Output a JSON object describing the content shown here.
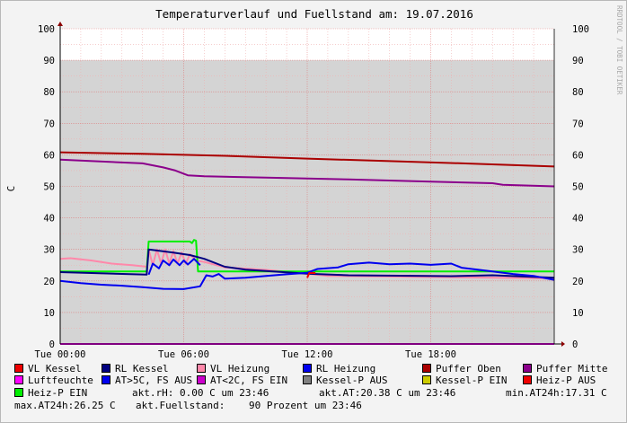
{
  "chart_data": {
    "type": "line",
    "title": "Temperaturverlauf und Fuellstand am: 19.07.2016",
    "ylabel": "C",
    "watermark": "RRDTOOL / TOBI OETIKER",
    "ylim": [
      0,
      100
    ],
    "yticks": [
      0,
      10,
      20,
      30,
      40,
      50,
      60,
      70,
      80,
      90,
      100
    ],
    "xlim_hours": [
      0,
      24
    ],
    "xticks": [
      {
        "h": 0,
        "label": "Tue 00:00"
      },
      {
        "h": 6,
        "label": "Tue 06:00"
      },
      {
        "h": 12,
        "label": "Tue 12:00"
      },
      {
        "h": 18,
        "label": "Tue 18:00"
      }
    ],
    "level_fill": 90,
    "series": [
      {
        "name": "Fuellstand",
        "color": "#d4d4d4",
        "role": "area",
        "points": [
          [
            0,
            90
          ],
          [
            24,
            90
          ]
        ]
      },
      {
        "name": "Puffer Oben",
        "color": "#aa0000",
        "points": [
          [
            0,
            60.8
          ],
          [
            4,
            60.3
          ],
          [
            8,
            59.7
          ],
          [
            12,
            58.8
          ],
          [
            16,
            58
          ],
          [
            20,
            57.2
          ],
          [
            24,
            56.3
          ]
        ]
      },
      {
        "name": "Puffer Mitte",
        "color": "#8b008b",
        "points": [
          [
            0,
            58.5
          ],
          [
            4,
            57.3
          ],
          [
            5,
            56
          ],
          [
            5.6,
            55
          ],
          [
            6.2,
            53.5
          ],
          [
            7,
            53.2
          ],
          [
            10,
            52.8
          ],
          [
            14,
            52.2
          ],
          [
            18,
            51.5
          ],
          [
            21,
            51
          ],
          [
            21.5,
            50.5
          ],
          [
            24,
            50
          ]
        ]
      },
      {
        "name": "VL Heizung",
        "color": "#ff88aa",
        "points": [
          [
            0,
            27
          ],
          [
            0.5,
            27.2
          ],
          [
            1.5,
            26.5
          ],
          [
            2.5,
            25.5
          ],
          [
            3.5,
            25
          ],
          [
            4.2,
            24.5
          ],
          [
            4.3,
            30
          ],
          [
            4.5,
            25
          ],
          [
            4.7,
            30
          ],
          [
            4.9,
            25.5
          ],
          [
            5.1,
            30
          ],
          [
            5.3,
            25.5
          ],
          [
            5.5,
            29.5
          ],
          [
            5.7,
            25.5
          ],
          [
            5.9,
            29
          ],
          [
            6.1,
            25.5
          ],
          [
            6.3,
            28.5
          ],
          [
            6.6,
            26.5
          ],
          [
            7,
            26
          ],
          [
            8,
            24.3
          ],
          [
            10,
            23.5
          ],
          [
            12,
            22.3
          ],
          [
            13,
            21.6
          ],
          [
            24,
            20.8
          ]
        ]
      },
      {
        "name": "Heiz-P EIN",
        "color": "#00ee00",
        "points": [
          [
            0,
            23
          ],
          [
            4.2,
            23
          ],
          [
            4.3,
            32.5
          ],
          [
            6.3,
            32.5
          ],
          [
            6.4,
            32
          ],
          [
            6.5,
            33
          ],
          [
            6.6,
            32.8
          ],
          [
            6.7,
            23
          ],
          [
            24,
            23
          ]
        ]
      },
      {
        "name": "RL Kessel",
        "color": "#000080",
        "points": [
          [
            0,
            22.8
          ],
          [
            4.2,
            22
          ],
          [
            4.3,
            30
          ],
          [
            5.5,
            29
          ],
          [
            6.3,
            28.2
          ],
          [
            7,
            27
          ],
          [
            8,
            24.5
          ],
          [
            9,
            23.6
          ],
          [
            12,
            22.3
          ],
          [
            14,
            21.8
          ],
          [
            19,
            21.5
          ],
          [
            21,
            21.8
          ],
          [
            24,
            21
          ]
        ]
      },
      {
        "name": "RL Heizung",
        "color": "#0000ee",
        "points": [
          [
            0,
            20
          ],
          [
            1,
            19.3
          ],
          [
            2,
            18.8
          ],
          [
            3,
            18.5
          ],
          [
            4,
            18
          ],
          [
            5,
            17.5
          ],
          [
            6,
            17.4
          ],
          [
            6.8,
            18.3
          ],
          [
            7.1,
            21.8
          ],
          [
            7.4,
            21.4
          ],
          [
            7.7,
            22.2
          ],
          [
            8,
            20.7
          ],
          [
            9,
            21
          ],
          [
            10,
            21.6
          ],
          [
            11,
            22.1
          ],
          [
            12,
            22.6
          ],
          [
            12.5,
            23.8
          ],
          [
            13.5,
            24.3
          ],
          [
            14,
            25.3
          ],
          [
            15,
            25.8
          ],
          [
            16,
            25.3
          ],
          [
            17,
            25.5
          ],
          [
            18,
            25.1
          ],
          [
            19,
            25.5
          ],
          [
            19.5,
            24.2
          ],
          [
            21,
            23
          ],
          [
            22,
            22.2
          ],
          [
            23,
            21.6
          ],
          [
            24,
            20.3
          ]
        ]
      },
      {
        "name": "RL Heizung (06h burst)",
        "color": "#0000ee",
        "points": [
          [
            4.3,
            22
          ],
          [
            4.5,
            25.5
          ],
          [
            4.8,
            24
          ],
          [
            5,
            26.5
          ],
          [
            5.3,
            25
          ],
          [
            5.5,
            26.8
          ],
          [
            5.8,
            25
          ],
          [
            6,
            26.5
          ],
          [
            6.2,
            25.2
          ],
          [
            6.5,
            27
          ],
          [
            6.8,
            25
          ]
        ]
      },
      {
        "name": "VL Kessel",
        "color": "#ee0000",
        "points": [
          [
            12,
            21
          ],
          [
            12.1,
            22.5
          ],
          [
            12.4,
            22.5
          ]
        ]
      },
      {
        "name": "Luftfeuchte",
        "color": "#ff00ff",
        "points": [
          [
            0,
            0
          ],
          [
            24,
            0
          ]
        ]
      }
    ]
  },
  "legend": {
    "rows": [
      [
        {
          "label": "VL Kessel",
          "color": "#ee0000"
        },
        {
          "label": "RL Kessel",
          "color": "#000080"
        },
        {
          "label": "VL Heizung",
          "color": "#ff88aa"
        },
        {
          "label": "RL Heizung",
          "color": "#0000ee"
        },
        {
          "label": "Puffer Oben",
          "color": "#aa0000"
        },
        {
          "label": "Puffer Mitte",
          "color": "#8b008b"
        }
      ],
      [
        {
          "label": "Luftfeuchte",
          "color": "#ff00ff"
        },
        {
          "label": "AT>5C, FS AUS",
          "color": "#0000ee"
        },
        {
          "label": "AT<2C, FS EIN",
          "color": "#cc00cc"
        },
        {
          "label": "Kessel-P AUS",
          "color": "#808080"
        },
        {
          "label": "Kessel-P EIN",
          "color": "#cccc00"
        },
        {
          "label": "Heiz-P AUS",
          "color": "#ee0000"
        }
      ],
      [
        {
          "label": "Heiz-P EIN",
          "color": "#00ee00"
        }
      ]
    ],
    "info_row3": [
      "akt.rH: 0.00 C um 23:46",
      "akt.AT:20.38 C um 23:46",
      "min.AT24h:17.31 C"
    ],
    "info_row4": [
      "max.AT24h:26.25 C",
      "akt.Fuellstand:",
      "90 Prozent um 23:46"
    ]
  }
}
